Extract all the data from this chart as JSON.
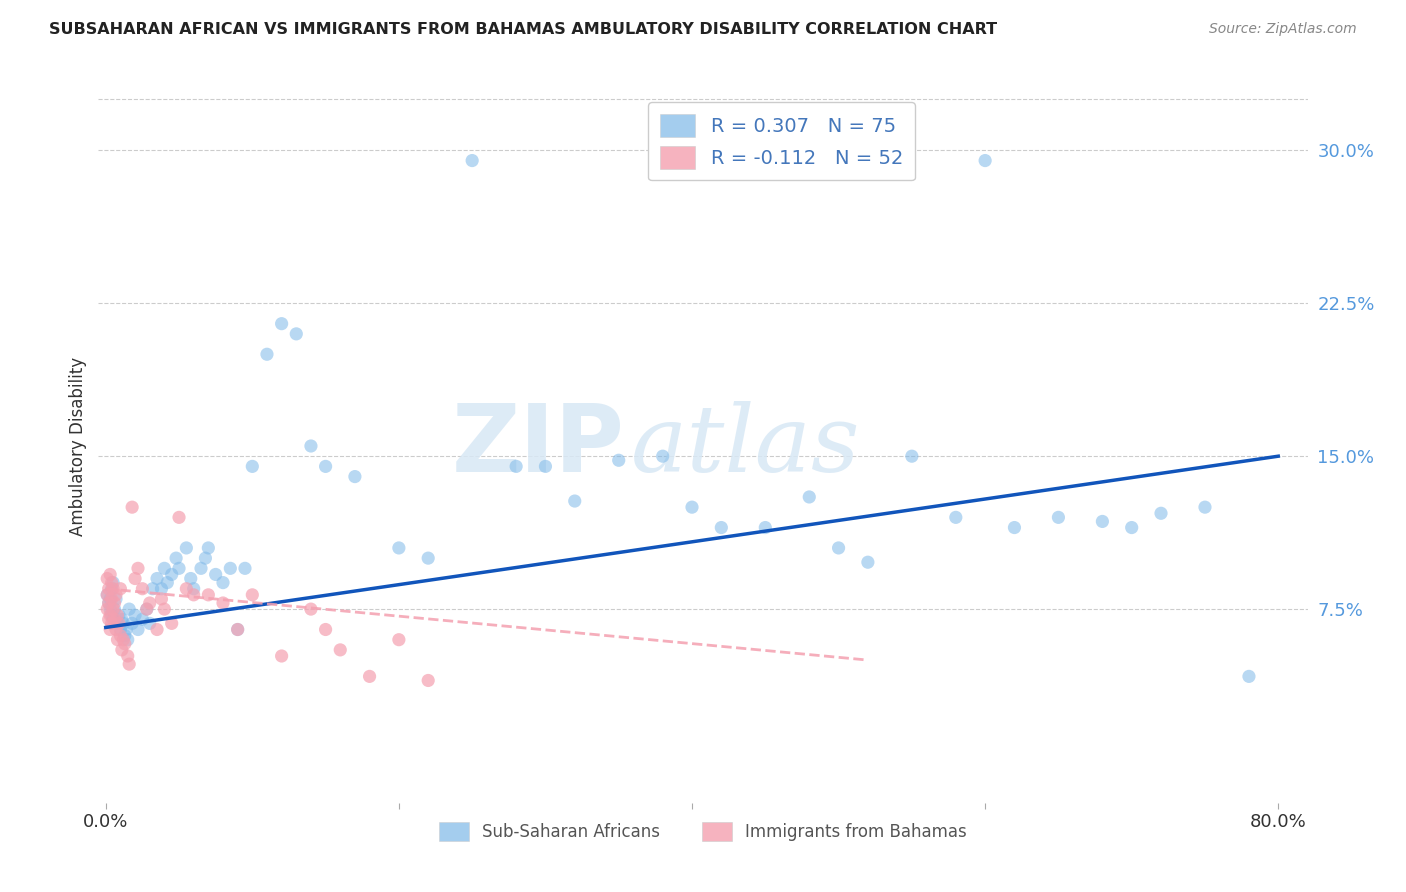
{
  "title": "SUBSAHARAN AFRICAN VS IMMIGRANTS FROM BAHAMAS AMBULATORY DISABILITY CORRELATION CHART",
  "source": "Source: ZipAtlas.com",
  "ylabel": "Ambulatory Disability",
  "ytick_labels": [
    "7.5%",
    "15.0%",
    "22.5%",
    "30.0%"
  ],
  "ytick_values": [
    0.075,
    0.15,
    0.225,
    0.3
  ],
  "xlim": [
    -0.005,
    0.82
  ],
  "ylim": [
    -0.02,
    0.33
  ],
  "legend1_label": "R = 0.307   N = 75",
  "legend2_label": "R = -0.112   N = 52",
  "legend_bottom_label1": "Sub-Saharan Africans",
  "legend_bottom_label2": "Immigrants from Bahamas",
  "blue_color": "#7EB8E8",
  "pink_color": "#F4A0B0",
  "line_blue": "#1155BB",
  "line_pink": "#F4A0B0",
  "blue_scatter": {
    "x": [
      0.001,
      0.002,
      0.003,
      0.003,
      0.004,
      0.004,
      0.005,
      0.005,
      0.006,
      0.007,
      0.008,
      0.009,
      0.01,
      0.011,
      0.012,
      0.013,
      0.014,
      0.015,
      0.016,
      0.018,
      0.02,
      0.022,
      0.025,
      0.028,
      0.03,
      0.032,
      0.035,
      0.038,
      0.04,
      0.042,
      0.045,
      0.048,
      0.05,
      0.055,
      0.058,
      0.06,
      0.065,
      0.068,
      0.07,
      0.075,
      0.08,
      0.085,
      0.09,
      0.095,
      0.1,
      0.11,
      0.12,
      0.13,
      0.14,
      0.15,
      0.17,
      0.2,
      0.22,
      0.25,
      0.28,
      0.3,
      0.32,
      0.35,
      0.38,
      0.4,
      0.42,
      0.45,
      0.48,
      0.5,
      0.52,
      0.55,
      0.58,
      0.6,
      0.62,
      0.65,
      0.68,
      0.7,
      0.72,
      0.75,
      0.78
    ],
    "y": [
      0.082,
      0.078,
      0.075,
      0.08,
      0.072,
      0.085,
      0.07,
      0.088,
      0.075,
      0.08,
      0.068,
      0.072,
      0.065,
      0.07,
      0.068,
      0.062,
      0.065,
      0.06,
      0.075,
      0.068,
      0.072,
      0.065,
      0.07,
      0.075,
      0.068,
      0.085,
      0.09,
      0.085,
      0.095,
      0.088,
      0.092,
      0.1,
      0.095,
      0.105,
      0.09,
      0.085,
      0.095,
      0.1,
      0.105,
      0.092,
      0.088,
      0.095,
      0.065,
      0.095,
      0.145,
      0.2,
      0.215,
      0.21,
      0.155,
      0.145,
      0.14,
      0.105,
      0.1,
      0.295,
      0.145,
      0.145,
      0.128,
      0.148,
      0.15,
      0.125,
      0.115,
      0.115,
      0.13,
      0.105,
      0.098,
      0.15,
      0.12,
      0.295,
      0.115,
      0.12,
      0.118,
      0.115,
      0.122,
      0.125,
      0.042
    ]
  },
  "pink_scatter": {
    "x": [
      0.001,
      0.001,
      0.001,
      0.002,
      0.002,
      0.002,
      0.003,
      0.003,
      0.003,
      0.004,
      0.004,
      0.004,
      0.005,
      0.005,
      0.006,
      0.006,
      0.007,
      0.007,
      0.008,
      0.008,
      0.009,
      0.01,
      0.01,
      0.011,
      0.012,
      0.013,
      0.015,
      0.016,
      0.018,
      0.02,
      0.022,
      0.025,
      0.028,
      0.03,
      0.035,
      0.038,
      0.04,
      0.045,
      0.05,
      0.055,
      0.06,
      0.07,
      0.08,
      0.09,
      0.1,
      0.12,
      0.14,
      0.15,
      0.16,
      0.18,
      0.2,
      0.22
    ],
    "y": [
      0.09,
      0.082,
      0.075,
      0.085,
      0.078,
      0.07,
      0.092,
      0.072,
      0.065,
      0.088,
      0.08,
      0.068,
      0.075,
      0.085,
      0.07,
      0.078,
      0.065,
      0.082,
      0.06,
      0.072,
      0.068,
      0.062,
      0.085,
      0.055,
      0.06,
      0.058,
      0.052,
      0.048,
      0.125,
      0.09,
      0.095,
      0.085,
      0.075,
      0.078,
      0.065,
      0.08,
      0.075,
      0.068,
      0.12,
      0.085,
      0.082,
      0.082,
      0.078,
      0.065,
      0.082,
      0.052,
      0.075,
      0.065,
      0.055,
      0.042,
      0.06,
      0.04
    ]
  },
  "blue_line": {
    "x0": 0.0,
    "x1": 0.8,
    "y0": 0.066,
    "y1": 0.15
  },
  "pink_line": {
    "x0": 0.0,
    "x1": 0.52,
    "y0": 0.085,
    "y1": 0.05
  }
}
